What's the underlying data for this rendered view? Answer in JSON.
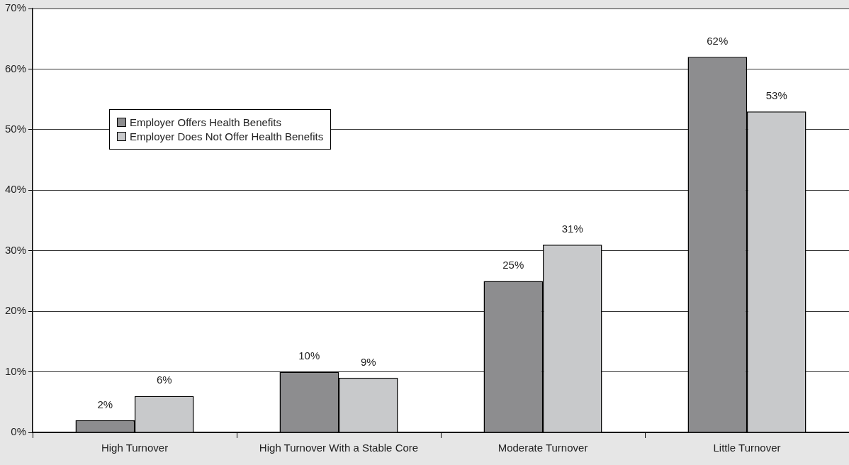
{
  "chart_data": {
    "type": "bar",
    "categories": [
      "High Turnover",
      "High Turnover With a Stable Core",
      "Moderate Turnover",
      "Little Turnover"
    ],
    "series": [
      {
        "name": "Employer Offers Health Benefits",
        "color": "#8d8d8f",
        "values": [
          2,
          10,
          25,
          62
        ]
      },
      {
        "name": "Employer Does Not Offer Health Benefits",
        "color": "#c8c9cb",
        "values": [
          6,
          9,
          31,
          53
        ]
      }
    ],
    "ylim": [
      0,
      70
    ],
    "yticks": [
      {
        "value": 0,
        "label": "0%"
      },
      {
        "value": 10,
        "label": "10%"
      },
      {
        "value": 20,
        "label": "20%"
      },
      {
        "value": 30,
        "label": "30%"
      },
      {
        "value": 40,
        "label": "40%"
      },
      {
        "value": 50,
        "label": "50%"
      },
      {
        "value": 60,
        "label": "60%"
      },
      {
        "value": 70,
        "label": "70%"
      }
    ],
    "value_labels": [
      [
        "2%",
        "10%",
        "25%",
        "62%"
      ],
      [
        "6%",
        "9%",
        "31%",
        "53%"
      ]
    ],
    "grid": "y",
    "legend": "top left"
  }
}
